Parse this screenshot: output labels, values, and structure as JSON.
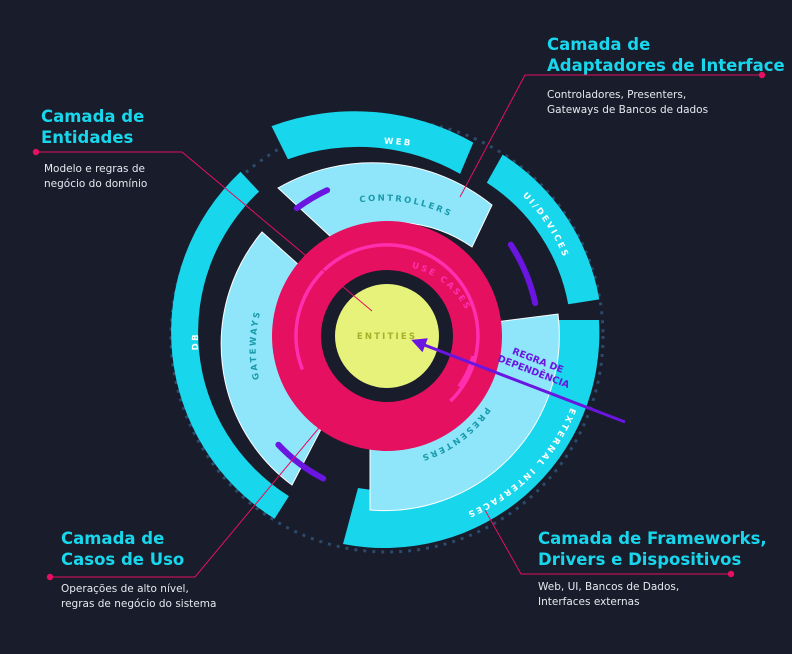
{
  "colors": {
    "background": "#181c2b",
    "cyan": "#18d6ec",
    "light_blue": "#8fe6fb",
    "pink": "#e5105f",
    "magenta": "#ff2fb0",
    "lime": "#e7f27a",
    "purple": "#6a15e0",
    "callout_dot": "#e5105f",
    "dotted_ring": "#2c4a6a"
  },
  "rings": {
    "entities": "ENTITIES",
    "use_cases": "USE CASES",
    "controllers": "CONTROLLERS",
    "gateways": "GATEWAYS",
    "presenters": "PRESENTERS",
    "web": "WEB",
    "ui_devices": "UI/DEVICES",
    "db": "DB",
    "external_interfaces": "EXTERNAL INTERFACES"
  },
  "dependency_rule": {
    "line1": "REGRA DE",
    "line2": "DEPENDÊNCIA"
  },
  "callouts": {
    "interface_adapters": {
      "title_line1": "Camada de",
      "title_line2": "Adaptadores de Interface",
      "desc_line1": "Controladores, Presenters,",
      "desc_line2": "Gateways de Bancos de dados"
    },
    "entities": {
      "title_line1": "Camada de",
      "title_line2": "Entidades",
      "desc_line1": "Modelo e regras de",
      "desc_line2": "negócio do domínio"
    },
    "use_cases": {
      "title_line1": "Camada de",
      "title_line2": "Casos de Uso",
      "desc_line1": "Operações de alto nível,",
      "desc_line2": "regras de negócio do sistema"
    },
    "frameworks": {
      "title_line1": "Camada de Frameworks,",
      "title_line2": "Drivers e Dispositivos",
      "desc_line1": "Web, UI, Bancos de Dados,",
      "desc_line2": "Interfaces externas"
    }
  }
}
